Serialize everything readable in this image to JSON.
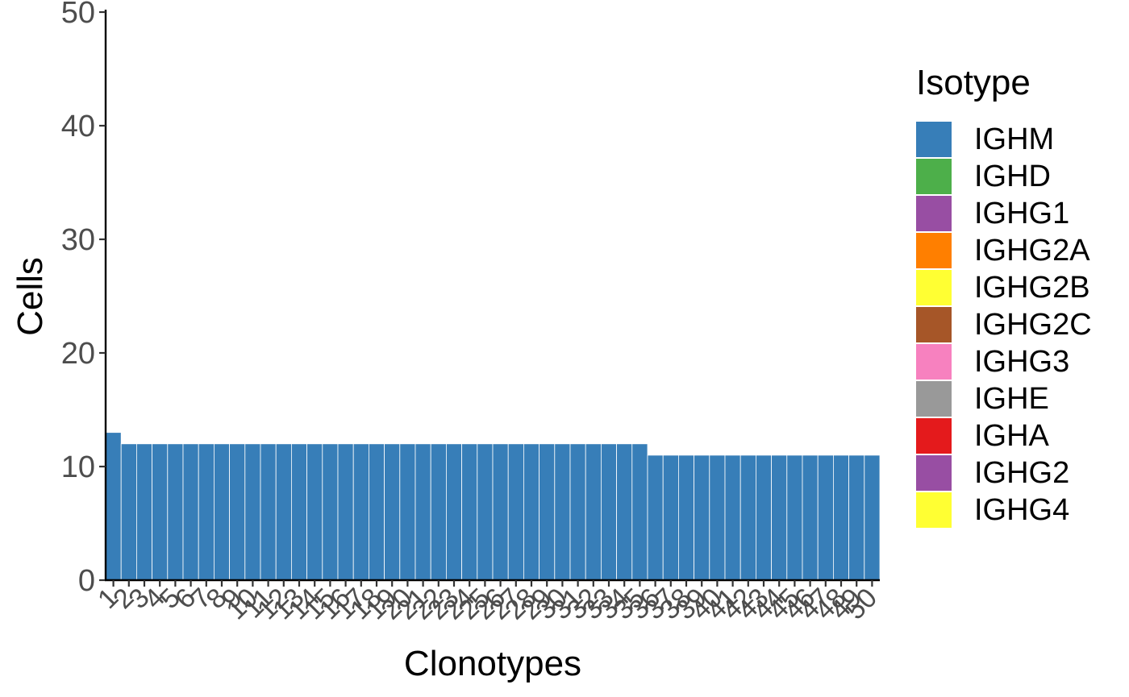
{
  "chart_data": {
    "type": "bar",
    "xlabel": "Clonotypes",
    "ylabel": "Cells",
    "ylim": [
      0,
      50
    ],
    "yticks": [
      0,
      10,
      20,
      30,
      40,
      50
    ],
    "categories": [
      "1",
      "2",
      "3",
      "4",
      "5",
      "6",
      "7",
      "8",
      "9",
      "10",
      "11",
      "12",
      "13",
      "14",
      "15",
      "16",
      "17",
      "18",
      "19",
      "20",
      "21",
      "22",
      "23",
      "24",
      "25",
      "26",
      "27",
      "28",
      "29",
      "30",
      "31",
      "32",
      "33",
      "34",
      "35",
      "36",
      "37",
      "38",
      "39",
      "40",
      "41",
      "42",
      "43",
      "44",
      "45",
      "46",
      "47",
      "48",
      "49",
      "50"
    ],
    "series": [
      {
        "name": "IGHM",
        "color": "#377EB8",
        "values": [
          13,
          12,
          12,
          12,
          12,
          12,
          12,
          12,
          12,
          12,
          12,
          12,
          12,
          12,
          12,
          12,
          12,
          12,
          12,
          12,
          12,
          12,
          12,
          12,
          12,
          12,
          12,
          12,
          12,
          12,
          12,
          12,
          12,
          12,
          12,
          11,
          11,
          11,
          11,
          11,
          11,
          11,
          11,
          11,
          11,
          11,
          11,
          11,
          11,
          11
        ]
      }
    ],
    "legend": {
      "title": "Isotype",
      "position": "right",
      "items": [
        {
          "label": "IGHM",
          "color": "#377EB8"
        },
        {
          "label": "IGHD",
          "color": "#4DAF4A"
        },
        {
          "label": "IGHG1",
          "color": "#984EA3"
        },
        {
          "label": "IGHG2A",
          "color": "#FF7F00"
        },
        {
          "label": "IGHG2B",
          "color": "#FFFF33"
        },
        {
          "label": "IGHG2C",
          "color": "#A65628"
        },
        {
          "label": "IGHG3",
          "color": "#F781BF"
        },
        {
          "label": "IGHE",
          "color": "#999999"
        },
        {
          "label": "IGHA",
          "color": "#E41A1C"
        },
        {
          "label": "IGHG2",
          "color": "#984EA3"
        },
        {
          "label": "IGHG4",
          "color": "#FFFF33"
        }
      ]
    },
    "grid": false
  }
}
